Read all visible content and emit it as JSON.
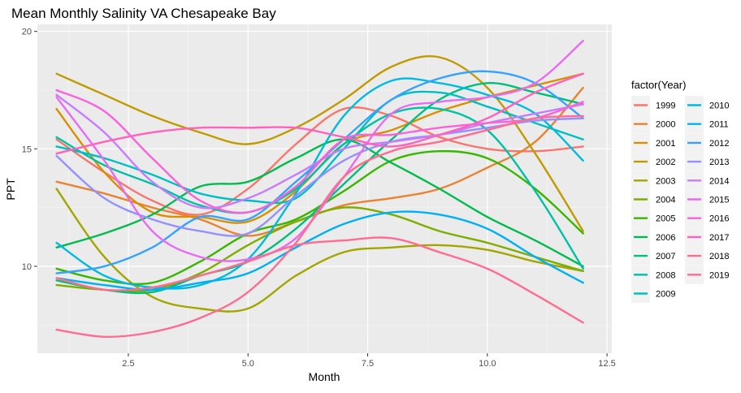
{
  "chart_data": {
    "type": "line",
    "title": "Mean Monthly Salinity VA Chesapeake Bay",
    "xlabel": "Month",
    "ylabel": "PPT",
    "xlim": [
      0.6,
      12.6
    ],
    "ylim": [
      6.3,
      20.3
    ],
    "x_ticks": [
      2.5,
      5.0,
      7.5,
      10.0,
      12.5
    ],
    "x_tick_labels": [
      "2.5",
      "5.0",
      "7.5",
      "10.0",
      "12.5"
    ],
    "y_ticks": [
      10,
      15,
      20
    ],
    "y_tick_labels": [
      "10",
      "15",
      "20"
    ],
    "grid": true,
    "legend_title": "factor(Year)",
    "legend_position": "right",
    "x": [
      1,
      2,
      3,
      4,
      5,
      6,
      7,
      8,
      9,
      10,
      11,
      12
    ],
    "series": [
      {
        "name": "1999",
        "color": "#F8766D",
        "values": [
          15.4,
          14.0,
          12.8,
          12.2,
          13.3,
          15.2,
          16.7,
          16.4,
          15.5,
          15.0,
          14.9,
          15.1
        ]
      },
      {
        "name": "2000",
        "color": "#EA8331",
        "values": [
          13.6,
          13.1,
          12.5,
          12.0,
          11.3,
          11.9,
          12.6,
          12.9,
          13.3,
          14.2,
          15.3,
          17.6
        ]
      },
      {
        "name": "2001",
        "color": "#D89000",
        "values": [
          16.7,
          14.0,
          12.3,
          12.1,
          11.9,
          13.2,
          15.2,
          15.8,
          16.6,
          17.2,
          17.7,
          18.2
        ]
      },
      {
        "name": "2002",
        "color": "#C09B00",
        "values": [
          18.2,
          17.3,
          16.4,
          15.7,
          15.2,
          15.9,
          17.1,
          18.5,
          18.9,
          17.6,
          14.8,
          11.5
        ]
      },
      {
        "name": "2003",
        "color": "#A3A500",
        "values": [
          13.3,
          10.4,
          8.7,
          8.2,
          8.2,
          9.6,
          10.6,
          10.8,
          10.9,
          10.7,
          10.2,
          9.8
        ]
      },
      {
        "name": "2004",
        "color": "#7CAE00",
        "values": [
          9.2,
          9.0,
          9.0,
          9.7,
          10.9,
          11.9,
          12.5,
          12.2,
          11.5,
          11.0,
          10.4,
          9.8
        ]
      },
      {
        "name": "2005",
        "color": "#39B600",
        "values": [
          9.9,
          9.4,
          9.3,
          10.2,
          11.4,
          12.0,
          13.2,
          14.5,
          14.9,
          14.6,
          13.3,
          11.4
        ]
      },
      {
        "name": "2006",
        "color": "#00BB4E",
        "values": [
          10.8,
          11.4,
          12.2,
          13.4,
          13.6,
          14.6,
          15.4,
          14.4,
          13.3,
          12.1,
          11.1,
          10.0
        ]
      },
      {
        "name": "2007",
        "color": "#00BF7D",
        "values": [
          9.4,
          9.0,
          8.9,
          9.6,
          10.2,
          11.6,
          13.5,
          15.4,
          17.1,
          17.8,
          17.4,
          16.9
        ]
      },
      {
        "name": "2008",
        "color": "#00C1A3",
        "values": [
          15.5,
          14.3,
          13.5,
          12.6,
          12.3,
          13.3,
          15.2,
          16.5,
          16.7,
          15.8,
          13.2,
          9.9
        ]
      },
      {
        "name": "2009",
        "color": "#00BFC4",
        "values": [
          15.1,
          14.6,
          13.9,
          13.1,
          12.8,
          12.9,
          15.0,
          17.1,
          17.4,
          16.8,
          16.1,
          15.4
        ]
      },
      {
        "name": "2010",
        "color": "#00BAE0",
        "values": [
          11.0,
          9.6,
          9.1,
          9.2,
          10.3,
          13.1,
          16.4,
          17.9,
          17.8,
          17.3,
          16.5,
          14.5
        ]
      },
      {
        "name": "2011",
        "color": "#00B0F6",
        "values": [
          9.5,
          9.2,
          9.0,
          9.3,
          9.7,
          10.8,
          11.8,
          12.3,
          12.2,
          11.6,
          10.4,
          9.3
        ]
      },
      {
        "name": "2012",
        "color": "#35A2FF",
        "values": [
          9.7,
          10.0,
          10.8,
          12.1,
          12.0,
          13.6,
          15.4,
          17.1,
          18.0,
          18.3,
          17.8,
          16.3
        ]
      },
      {
        "name": "2013",
        "color": "#9590FF",
        "values": [
          14.7,
          12.9,
          12.0,
          11.5,
          11.4,
          13.0,
          14.5,
          15.3,
          15.6,
          15.9,
          16.2,
          16.3
        ]
      },
      {
        "name": "2014",
        "color": "#C77CFF",
        "values": [
          17.3,
          15.7,
          13.6,
          12.5,
          12.9,
          13.9,
          15.0,
          15.3,
          15.6,
          16.1,
          16.5,
          16.9
        ]
      },
      {
        "name": "2015",
        "color": "#E76BF3",
        "values": [
          17.2,
          14.5,
          11.5,
          10.4,
          10.3,
          11.2,
          13.8,
          16.5,
          17.0,
          17.2,
          17.8,
          19.6
        ]
      },
      {
        "name": "2016",
        "color": "#FA62DB",
        "values": [
          17.5,
          16.6,
          14.6,
          12.8,
          12.3,
          13.4,
          15.4,
          15.6,
          15.9,
          16.1,
          16.3,
          17.0
        ]
      },
      {
        "name": "2017",
        "color": "#FF62BC",
        "values": [
          14.8,
          15.3,
          15.7,
          15.9,
          15.9,
          15.9,
          15.5,
          15.1,
          15.6,
          16.3,
          17.4,
          18.2
        ]
      },
      {
        "name": "2018",
        "color": "#FF6C91",
        "values": [
          9.5,
          9.0,
          9.1,
          9.6,
          10.2,
          10.9,
          11.1,
          11.2,
          10.6,
          9.9,
          8.8,
          7.6
        ]
      },
      {
        "name": "2019",
        "color": "#FF6C91",
        "values": [
          7.3,
          7.0,
          7.2,
          7.8,
          8.9,
          11.0,
          13.8,
          14.9,
          15.3,
          15.8,
          16.3,
          16.4
        ]
      }
    ]
  }
}
